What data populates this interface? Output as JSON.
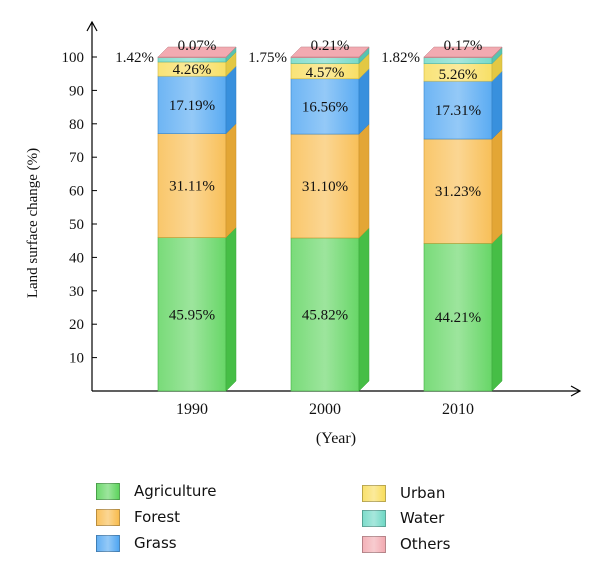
{
  "chart_data": {
    "type": "bar",
    "stacked": true,
    "categories": [
      "1990",
      "2000",
      "2010"
    ],
    "series": [
      {
        "name": "Agriculture",
        "values": [
          45.95,
          45.82,
          44.21
        ],
        "label_text": [
          "45.95%",
          "45.82%",
          "44.21%"
        ],
        "color": "#4ccf4c"
      },
      {
        "name": "Forest",
        "values": [
          31.11,
          31.1,
          31.23
        ],
        "label_text": [
          "31.11%",
          "31.10%",
          "31.23%"
        ],
        "color": "#f7b43a"
      },
      {
        "name": "Grass",
        "values": [
          17.19,
          16.56,
          17.31
        ],
        "label_text": [
          "17.19%",
          "16.56%",
          "17.31%"
        ],
        "color": "#3d9cf0"
      },
      {
        "name": "Urban",
        "values": [
          4.26,
          4.57,
          5.26
        ],
        "label_text": [
          "4.26%",
          "4.57%",
          "5.26%"
        ],
        "color": "#f7d94a"
      },
      {
        "name": "Water",
        "values": [
          1.42,
          1.75,
          1.82
        ],
        "label_text": [
          "1.42%",
          "1.75%",
          "1.82%"
        ],
        "color": "#5fd4bf"
      },
      {
        "name": "Others",
        "values": [
          0.07,
          0.21,
          0.17
        ],
        "label_text": [
          "0.07%",
          "0.21%",
          "0.17%"
        ],
        "color": "#f0a0a8"
      }
    ],
    "title": "",
    "xlabel": "(Year)",
    "ylabel": "Land surface change (%)",
    "ylim": [
      0,
      100
    ],
    "yticks": [
      10,
      20,
      30,
      40,
      50,
      60,
      70,
      80,
      90,
      100
    ],
    "grid": false,
    "legend_position": "bottom"
  }
}
